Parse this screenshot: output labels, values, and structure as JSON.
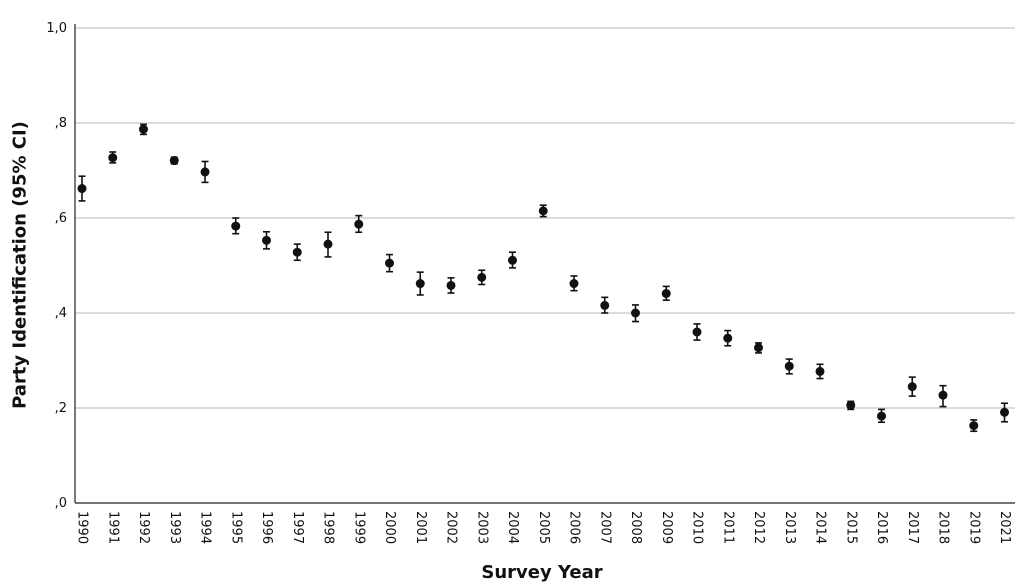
{
  "chart_data": {
    "type": "scatter",
    "title": "",
    "xlabel": "Survey Year",
    "ylabel": "Party Identification (95% CI)",
    "ylim": [
      0,
      1.0
    ],
    "yticks": [
      0,
      0.2,
      0.4,
      0.6,
      0.8,
      1.0
    ],
    "ytick_labels": [
      ",0",
      ",2",
      ",4",
      ",6",
      ",8",
      "1,0"
    ],
    "grid": "horizontal",
    "categories": [
      "1990",
      "1991",
      "1992",
      "1993",
      "1994",
      "1995",
      "1996",
      "1997",
      "1998",
      "1999",
      "2000",
      "2001",
      "2002",
      "2003",
      "2004",
      "2005",
      "2006",
      "2007",
      "2008",
      "2009",
      "2010",
      "2011",
      "2012",
      "2013",
      "2014",
      "2015",
      "2016",
      "2017",
      "2018",
      "2019",
      "2021"
    ],
    "values": [
      0.662,
      0.727,
      0.787,
      0.721,
      0.697,
      0.583,
      0.553,
      0.528,
      0.545,
      0.587,
      0.505,
      0.462,
      0.458,
      0.475,
      0.511,
      0.615,
      0.462,
      0.416,
      0.4,
      0.441,
      0.36,
      0.347,
      0.327,
      0.288,
      0.277,
      0.206,
      0.183,
      0.245,
      0.227,
      0.163,
      0.191
    ],
    "ci_low": [
      0.636,
      0.716,
      0.776,
      0.714,
      0.675,
      0.567,
      0.535,
      0.511,
      0.518,
      0.57,
      0.487,
      0.438,
      0.442,
      0.46,
      0.495,
      0.603,
      0.447,
      0.4,
      0.382,
      0.427,
      0.343,
      0.331,
      0.316,
      0.272,
      0.262,
      0.197,
      0.17,
      0.225,
      0.203,
      0.151,
      0.171
    ],
    "ci_high": [
      0.688,
      0.739,
      0.797,
      0.728,
      0.719,
      0.6,
      0.571,
      0.545,
      0.57,
      0.605,
      0.523,
      0.486,
      0.474,
      0.49,
      0.528,
      0.627,
      0.478,
      0.433,
      0.417,
      0.456,
      0.377,
      0.363,
      0.337,
      0.303,
      0.292,
      0.214,
      0.197,
      0.265,
      0.247,
      0.175,
      0.21
    ]
  }
}
